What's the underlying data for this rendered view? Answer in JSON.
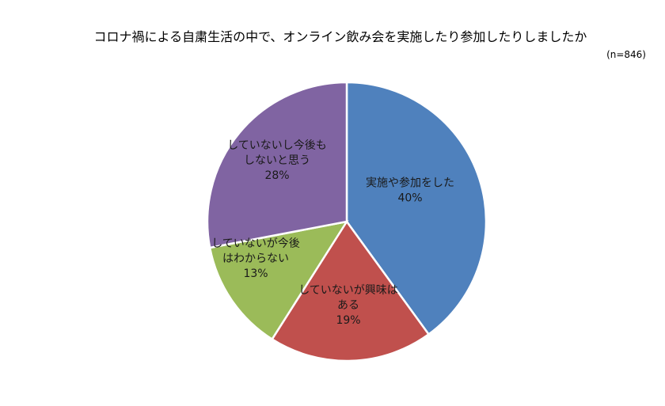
{
  "chart_data": {
    "type": "pie",
    "title": "コロナ禍による自粛生活の中で、オンライン飲み会を実施したり参加したりしましたか",
    "note": "(n=846)",
    "slices": [
      {
        "label_lines": [
          "実施や参加をした"
        ],
        "value": 40,
        "value_label": "40%",
        "color": "#4F81BD"
      },
      {
        "label_lines": [
          "していないが興味は",
          "ある"
        ],
        "value": 19,
        "value_label": "19%",
        "color": "#C0504D"
      },
      {
        "label_lines": [
          "していないが今後",
          "はわからない"
        ],
        "value": 13,
        "value_label": "13%",
        "color": "#9BBB59"
      },
      {
        "label_lines": [
          "していないし今後も",
          "しないと思う"
        ],
        "value": 28,
        "value_label": "28%",
        "color": "#8064A2"
      }
    ]
  }
}
